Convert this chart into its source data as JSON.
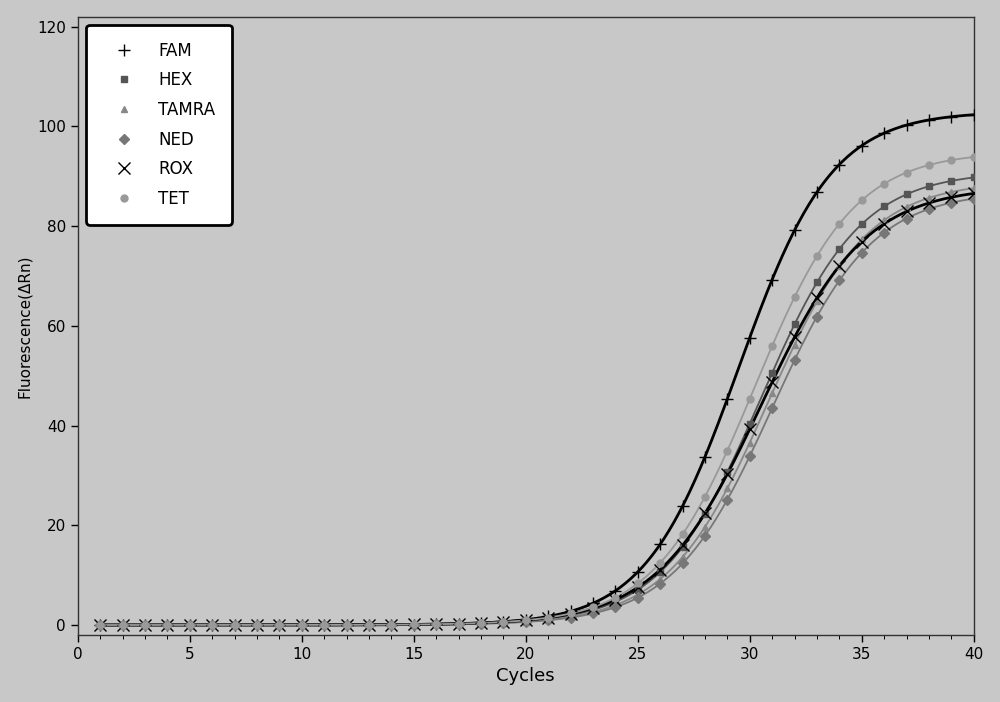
{
  "title": "",
  "xlabel": "Cycles",
  "ylabel": "Fluorescence(ΔRn)",
  "xlim": [
    1,
    40
  ],
  "ylim": [
    -2,
    120
  ],
  "xticks": [
    0,
    5,
    10,
    15,
    20,
    25,
    30,
    35,
    40
  ],
  "yticks": [
    0,
    20,
    40,
    60,
    80,
    100,
    120
  ],
  "background_color": "#c8c8c8",
  "plot_bg_color": "#c8c8c8",
  "series": [
    {
      "name": "FAM",
      "color": "#000000",
      "marker": "+",
      "linewidth": 2.0,
      "markersize": 8,
      "plateau": 103,
      "midpoint": 29.5,
      "steepness": 0.48
    },
    {
      "name": "HEX",
      "color": "#555555",
      "marker": "s",
      "linewidth": 1.3,
      "markersize": 5,
      "plateau": 91,
      "midpoint": 30.5,
      "steepness": 0.45
    },
    {
      "name": "TAMRA",
      "color": "#888888",
      "marker": "^",
      "linewidth": 1.3,
      "markersize": 5,
      "plateau": 89,
      "midpoint": 30.8,
      "steepness": 0.45
    },
    {
      "name": "NED",
      "color": "#777777",
      "marker": "D",
      "linewidth": 1.3,
      "markersize": 5,
      "plateau": 87,
      "midpoint": 31.0,
      "steepness": 0.45
    },
    {
      "name": "ROX",
      "color": "#000000",
      "marker": "x",
      "linewidth": 2.0,
      "markersize": 8,
      "plateau": 88,
      "midpoint": 30.5,
      "steepness": 0.43
    },
    {
      "name": "TET",
      "color": "#999999",
      "marker": "o",
      "linewidth": 1.3,
      "markersize": 5,
      "plateau": 95,
      "midpoint": 30.2,
      "steepness": 0.45
    }
  ]
}
